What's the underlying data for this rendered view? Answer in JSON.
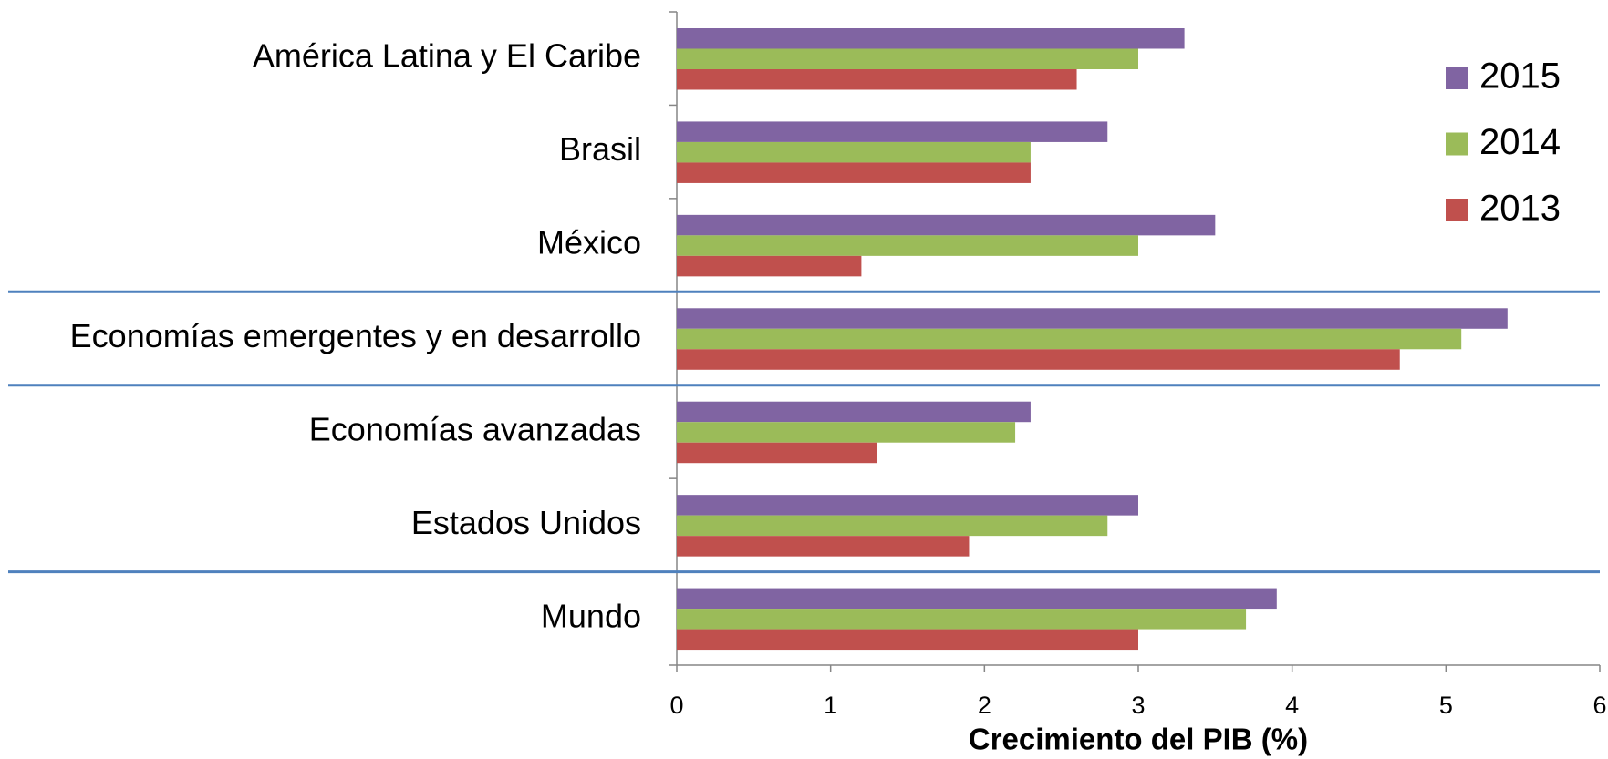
{
  "chart_data": {
    "type": "hbar",
    "x_label": "Crecimiento del PIB (%)",
    "categories": [
      "América Latina y El Caribe",
      "Brasil",
      "México",
      "Economías emergentes y en desarrollo",
      "Economías avanzadas",
      "Estados Unidos",
      "Mundo"
    ],
    "series": [
      {
        "name": "2015",
        "color": "#8064a2",
        "values": [
          3.3,
          2.8,
          3.5,
          5.4,
          2.3,
          3.0,
          3.9
        ]
      },
      {
        "name": "2014",
        "color": "#9bbb59",
        "values": [
          3.0,
          2.3,
          3.0,
          5.1,
          2.2,
          2.8,
          3.7
        ]
      },
      {
        "name": "2013",
        "color": "#c0504d",
        "values": [
          2.6,
          2.3,
          1.2,
          4.7,
          1.3,
          1.9,
          3.0
        ]
      }
    ],
    "xlim": [
      0,
      6
    ],
    "xticks": [
      0,
      1,
      2,
      3,
      4,
      5,
      6
    ],
    "legend": "upper right"
  }
}
